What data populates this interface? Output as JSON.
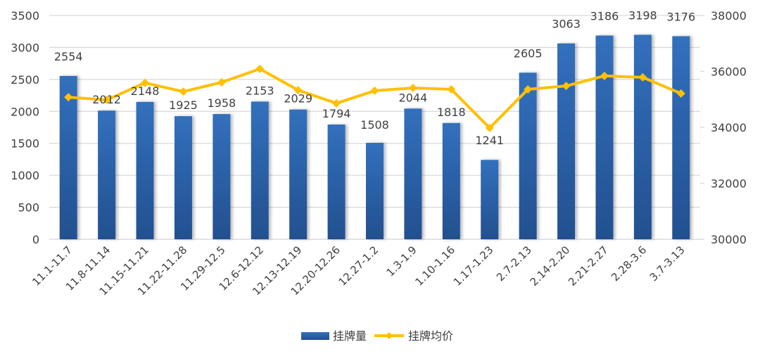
{
  "chart_data": {
    "type": "bar+line",
    "title": "",
    "categories": [
      "11.1-11.7",
      "11.8-11.14",
      "11.15-11.21",
      "11.22-11.28",
      "11.29-12.5",
      "12.6-12.12",
      "12.13-12.19",
      "12.20-12.26",
      "12.27-1.2",
      "1.3-1.9",
      "1.10-1.16",
      "1.17-1.23",
      "2.7-2.13",
      "2.14-2.20",
      "2.21-2.27",
      "2.28-3.6",
      "3.7-3.13"
    ],
    "series": [
      {
        "name": "挂牌量",
        "type": "bar",
        "axis": "left",
        "color": "#2e64ad",
        "values": [
          2554,
          2012,
          2148,
          1925,
          1958,
          2153,
          2029,
          1794,
          1508,
          2044,
          1818,
          1241,
          2605,
          3063,
          3186,
          3198,
          3176
        ]
      },
      {
        "name": "挂牌均价",
        "type": "line",
        "axis": "right",
        "color": "#ffc000",
        "values": [
          35080,
          34980,
          35590,
          35280,
          35610,
          36090,
          35330,
          34860,
          35310,
          35410,
          35360,
          33980,
          35360,
          35480,
          35840,
          35790,
          35210
        ]
      }
    ],
    "left_axis": {
      "min": 0,
      "max": 3500,
      "ticks": [
        0,
        500,
        1000,
        1500,
        2000,
        2500,
        3000,
        3500
      ]
    },
    "right_axis": {
      "min": 30000,
      "max": 38000,
      "ticks": [
        30000,
        32000,
        34000,
        36000,
        38000
      ]
    },
    "grid": true,
    "legend_position": "bottom"
  },
  "legend": {
    "bar_label": "挂牌量",
    "line_label": "挂牌均价"
  }
}
